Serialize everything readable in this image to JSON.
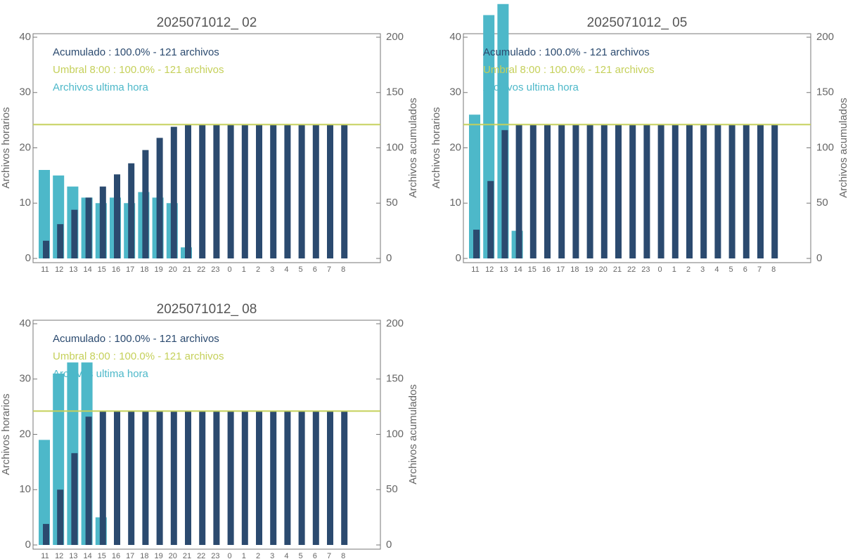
{
  "chart_data": [
    {
      "type": "bar",
      "title": "2025071012_ 02",
      "ylabel": "Archivos horarios",
      "y2label": "Archivos acumulados",
      "categories": [
        "11",
        "12",
        "13",
        "14",
        "15",
        "16",
        "17",
        "18",
        "19",
        "20",
        "21",
        "22",
        "23",
        "0",
        "1",
        "2",
        "3",
        "4",
        "5",
        "6",
        "7",
        "8"
      ],
      "ylim": [
        0,
        40
      ],
      "yticks": [
        0,
        10,
        20,
        30,
        40
      ],
      "y2lim": [
        0,
        200
      ],
      "y2ticks": [
        0,
        50,
        100,
        150,
        200
      ],
      "grid": false,
      "series": [
        {
          "name": "Acumulado : 100.0% - 121 archivos",
          "color": "#2b4a6f",
          "axis": "y2",
          "values": [
            16,
            31,
            44,
            55,
            65,
            76,
            86,
            98,
            109,
            119,
            121,
            121,
            121,
            121,
            121,
            121,
            121,
            121,
            121,
            121,
            121,
            121
          ]
        },
        {
          "name": "Archivos ultima hora",
          "color": "#4db8c9",
          "values": [
            16,
            15,
            13,
            11,
            10,
            11,
            10,
            12,
            11,
            10,
            2,
            0,
            0,
            0,
            0,
            0,
            0,
            0,
            0,
            0,
            0,
            0
          ]
        }
      ],
      "hlines": [
        {
          "name": "Umbral 8:00 : 100.0% - 121 archivos",
          "color": "#c5d05a",
          "axis": "y2",
          "value": 121
        }
      ]
    },
    {
      "type": "bar",
      "title": "2025071012_ 05",
      "ylabel": "Archivos horarios",
      "y2label": "Archivos acumulados",
      "categories": [
        "11",
        "12",
        "13",
        "14",
        "15",
        "16",
        "17",
        "18",
        "19",
        "20",
        "21",
        "22",
        "23",
        "0",
        "1",
        "2",
        "3",
        "4",
        "5",
        "6",
        "7",
        "8"
      ],
      "ylim": [
        0,
        40
      ],
      "yticks": [
        0,
        10,
        20,
        30,
        40
      ],
      "y2lim": [
        0,
        200
      ],
      "y2ticks": [
        0,
        50,
        100,
        150,
        200
      ],
      "grid": false,
      "series": [
        {
          "name": "Acumulado : 100.0% - 121 archivos",
          "color": "#2b4a6f",
          "axis": "y2",
          "values": [
            26,
            70,
            116,
            121,
            121,
            121,
            121,
            121,
            121,
            121,
            121,
            121,
            121,
            121,
            121,
            121,
            121,
            121,
            121,
            121,
            121,
            121
          ]
        },
        {
          "name": "Archivos ultima hora",
          "color": "#4db8c9",
          "values": [
            26,
            44,
            46,
            5,
            0,
            0,
            0,
            0,
            0,
            0,
            0,
            0,
            0,
            0,
            0,
            0,
            0,
            0,
            0,
            0,
            0,
            0
          ]
        }
      ],
      "hlines": [
        {
          "name": "Umbral 8:00 : 100.0% - 121 archivos",
          "color": "#c5d05a",
          "axis": "y2",
          "value": 121
        }
      ]
    },
    {
      "type": "bar",
      "title": "2025071012_ 08",
      "ylabel": "Archivos horarios",
      "y2label": "Archivos acumulados",
      "categories": [
        "11",
        "12",
        "13",
        "14",
        "15",
        "16",
        "17",
        "18",
        "19",
        "20",
        "21",
        "22",
        "23",
        "0",
        "1",
        "2",
        "3",
        "4",
        "5",
        "6",
        "7",
        "8"
      ],
      "ylim": [
        0,
        40
      ],
      "yticks": [
        0,
        10,
        20,
        30,
        40
      ],
      "y2lim": [
        0,
        200
      ],
      "y2ticks": [
        0,
        50,
        100,
        150,
        200
      ],
      "grid": false,
      "series": [
        {
          "name": "Acumulado : 100.0% - 121 archivos",
          "color": "#2b4a6f",
          "axis": "y2",
          "values": [
            19,
            50,
            83,
            116,
            121,
            121,
            121,
            121,
            121,
            121,
            121,
            121,
            121,
            121,
            121,
            121,
            121,
            121,
            121,
            121,
            121,
            121
          ]
        },
        {
          "name": "Archivos ultima hora",
          "color": "#4db8c9",
          "values": [
            19,
            31,
            33,
            33,
            5,
            0,
            0,
            0,
            0,
            0,
            0,
            0,
            0,
            0,
            0,
            0,
            0,
            0,
            0,
            0,
            0,
            0
          ]
        }
      ],
      "hlines": [
        {
          "name": "Umbral 8:00 : 100.0% - 121 archivos",
          "color": "#c5d05a",
          "axis": "y2",
          "value": 121
        }
      ]
    }
  ]
}
